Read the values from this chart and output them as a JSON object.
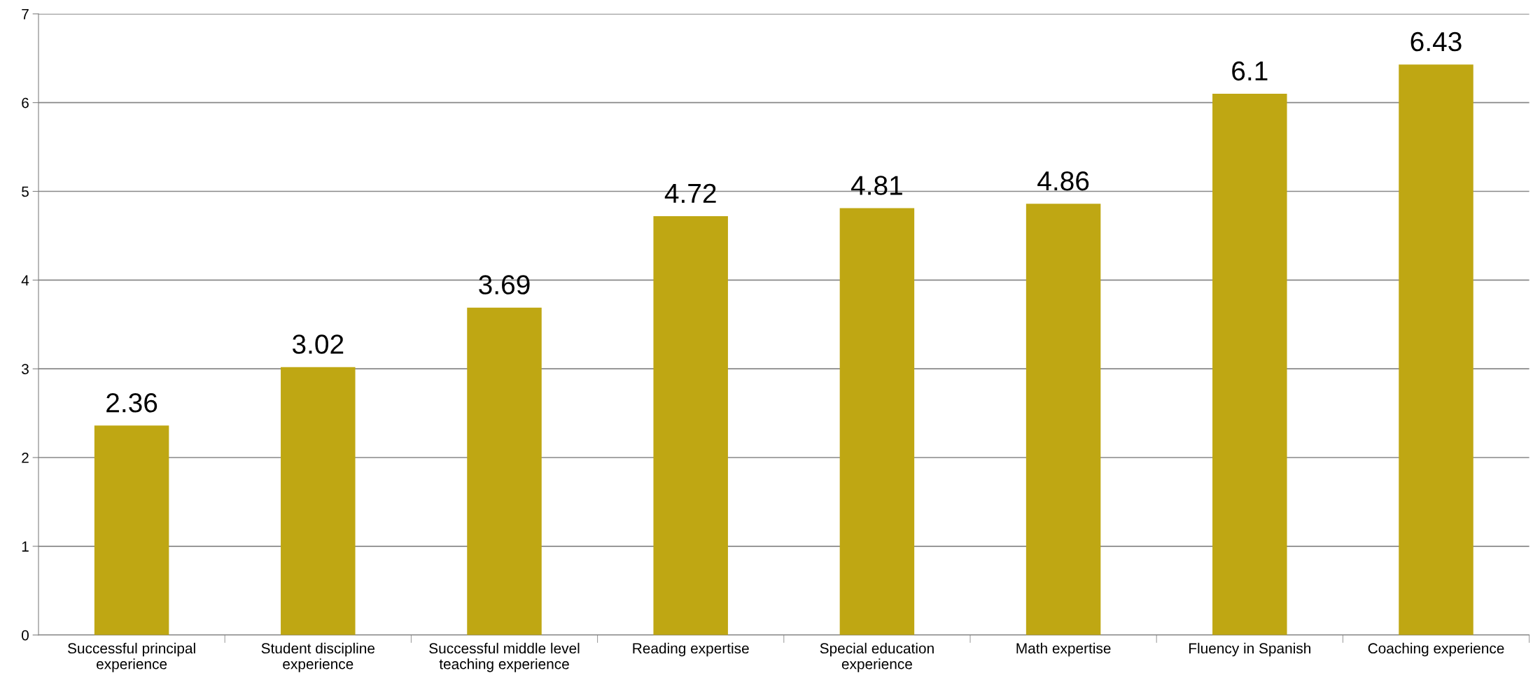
{
  "chart_data": {
    "type": "bar",
    "categories": [
      "Successful principal\nexperience",
      "Student discipline\nexperience",
      "Successful middle level\nteaching experience",
      "Reading expertise",
      "Special education\nexperience",
      "Math expertise",
      "Fluency in Spanish",
      "Coaching experience"
    ],
    "values": [
      2.36,
      3.02,
      3.69,
      4.72,
      4.81,
      4.86,
      6.1,
      6.43
    ],
    "color": "#bfa713",
    "ylim": [
      0,
      7
    ],
    "yticks": [
      0,
      1,
      2,
      3,
      4,
      5,
      6,
      7
    ],
    "grid": "y",
    "data_labels": true,
    "legend": false
  }
}
